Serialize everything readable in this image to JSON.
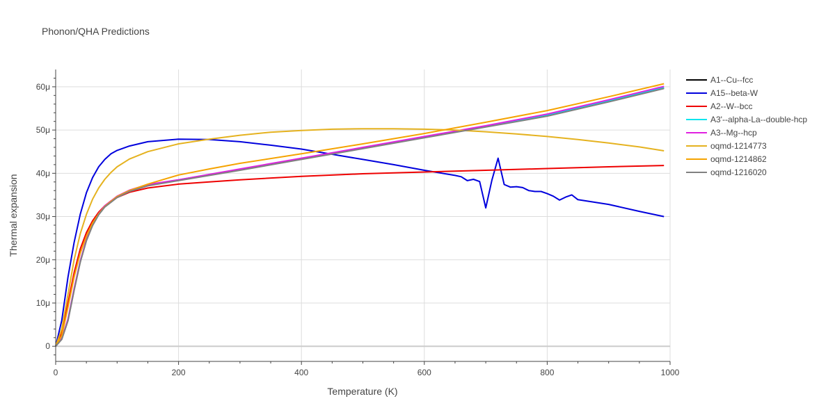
{
  "chart_data": {
    "type": "line",
    "title": "Phonon/QHA Predictions",
    "xlabel": "Temperature (K)",
    "ylabel": "Thermal expansion",
    "xlim": [
      0,
      1000
    ],
    "ylim": [
      -3.5e-06,
      6.4e-05
    ],
    "x_ticks": [
      {
        "value": 0,
        "label": "0"
      },
      {
        "value": 200,
        "label": "200"
      },
      {
        "value": 400,
        "label": "400"
      },
      {
        "value": 600,
        "label": "600"
      },
      {
        "value": 800,
        "label": "800"
      },
      {
        "value": 1000,
        "label": "1000"
      }
    ],
    "y_ticks": [
      {
        "value": 0,
        "label": "0"
      },
      {
        "value": 1e-05,
        "label": "10μ"
      },
      {
        "value": 2e-05,
        "label": "20μ"
      },
      {
        "value": 3e-05,
        "label": "30μ"
      },
      {
        "value": 4e-05,
        "label": "40μ"
      },
      {
        "value": 5e-05,
        "label": "50μ"
      },
      {
        "value": 6e-05,
        "label": "60μ"
      }
    ],
    "grid": true,
    "legend_position": "right",
    "series": [
      {
        "name": "A1--Cu--fcc",
        "color": "#000000",
        "x": [
          0,
          10,
          20,
          30,
          40,
          50,
          60,
          70,
          80,
          100,
          120,
          150,
          200,
          300,
          400,
          500,
          600,
          700,
          800,
          900,
          990
        ],
        "y": [
          0,
          1.7e-06,
          6e-06,
          1.3e-05,
          1.95e-05,
          2.45e-05,
          2.8e-05,
          3.05e-05,
          3.23e-05,
          3.45e-05,
          3.59e-05,
          3.72e-05,
          3.84e-05,
          4.08e-05,
          4.33e-05,
          4.58e-05,
          4.83e-05,
          5.08e-05,
          5.33e-05,
          5.66e-05,
          5.97e-05
        ]
      },
      {
        "name": "A15--beta-W",
        "color": "#0000dd",
        "x": [
          0,
          10,
          20,
          30,
          40,
          50,
          60,
          70,
          80,
          90,
          100,
          120,
          150,
          200,
          250,
          300,
          350,
          400,
          450,
          500,
          550,
          600,
          650,
          660,
          670,
          680,
          690,
          700,
          710,
          720,
          730,
          740,
          750,
          760,
          770,
          780,
          790,
          800,
          810,
          820,
          830,
          840,
          850,
          900,
          950,
          990
        ],
        "y": [
          0,
          6e-06,
          1.6e-05,
          2.4e-05,
          3.05e-05,
          3.55e-05,
          3.9e-05,
          4.15e-05,
          4.32e-05,
          4.45e-05,
          4.53e-05,
          4.63e-05,
          4.73e-05,
          4.79e-05,
          4.78e-05,
          4.73e-05,
          4.65e-05,
          4.56e-05,
          4.44e-05,
          4.32e-05,
          4.2e-05,
          4.07e-05,
          3.95e-05,
          3.92e-05,
          3.83e-05,
          3.86e-05,
          3.81e-05,
          3.2e-05,
          3.84e-05,
          4.35e-05,
          3.74e-05,
          3.68e-05,
          3.69e-05,
          3.67e-05,
          3.6e-05,
          3.58e-05,
          3.58e-05,
          3.53e-05,
          3.47e-05,
          3.38e-05,
          3.45e-05,
          3.5e-05,
          3.39e-05,
          3.28e-05,
          3.12e-05,
          3e-05
        ]
      },
      {
        "name": "A2--W--bcc",
        "color": "#ee0000",
        "x": [
          0,
          10,
          20,
          30,
          40,
          50,
          60,
          70,
          80,
          90,
          100,
          120,
          150,
          200,
          250,
          300,
          400,
          500,
          600,
          700,
          800,
          900,
          990
        ],
        "y": [
          0,
          3e-06,
          1e-05,
          1.7e-05,
          2.25e-05,
          2.63e-05,
          2.9e-05,
          3.1e-05,
          3.25e-05,
          3.36e-05,
          3.44e-05,
          3.56e-05,
          3.66e-05,
          3.75e-05,
          3.8e-05,
          3.85e-05,
          3.93e-05,
          3.99e-05,
          4.03e-05,
          4.07e-05,
          4.11e-05,
          4.15e-05,
          4.18e-05
        ]
      },
      {
        "name": "A3'--alpha-La--double-hcp",
        "color": "#00e5ee",
        "x": [
          0,
          10,
          20,
          30,
          40,
          50,
          60,
          70,
          80,
          100,
          120,
          150,
          200,
          300,
          400,
          500,
          600,
          700,
          800,
          900,
          990
        ],
        "y": [
          0,
          1.7e-06,
          6.2e-06,
          1.32e-05,
          1.96e-05,
          2.46e-05,
          2.81e-05,
          3.06e-05,
          3.24e-05,
          3.46e-05,
          3.6e-05,
          3.73e-05,
          3.85e-05,
          4.09e-05,
          4.34e-05,
          4.59e-05,
          4.84e-05,
          5.09e-05,
          5.35e-05,
          5.68e-05,
          5.99e-05
        ]
      },
      {
        "name": "A3--Mg--hcp",
        "color": "#e020e0",
        "x": [
          0,
          10,
          20,
          30,
          40,
          50,
          60,
          70,
          80,
          100,
          120,
          150,
          200,
          300,
          400,
          500,
          600,
          700,
          800,
          900,
          990
        ],
        "y": [
          0,
          1.8e-06,
          6.3e-06,
          1.33e-05,
          1.97e-05,
          2.47e-05,
          2.82e-05,
          3.07e-05,
          3.25e-05,
          3.47e-05,
          3.61e-05,
          3.74e-05,
          3.85e-05,
          4.1e-05,
          4.35e-05,
          4.6e-05,
          4.85e-05,
          5.1e-05,
          5.37e-05,
          5.7e-05,
          6.01e-05
        ]
      },
      {
        "name": "oqmd-1214773",
        "color": "#e5b21f",
        "x": [
          0,
          10,
          20,
          30,
          40,
          50,
          60,
          70,
          80,
          90,
          100,
          120,
          150,
          200,
          250,
          300,
          350,
          400,
          450,
          500,
          550,
          600,
          650,
          700,
          750,
          800,
          850,
          900,
          950,
          990
        ],
        "y": [
          0,
          4e-06,
          1.2e-05,
          2e-05,
          2.6e-05,
          3.05e-05,
          3.4e-05,
          3.66e-05,
          3.86e-05,
          4.02e-05,
          4.15e-05,
          4.33e-05,
          4.5e-05,
          4.68e-05,
          4.79e-05,
          4.88e-05,
          4.95e-05,
          4.99e-05,
          5.02e-05,
          5.03e-05,
          5.03e-05,
          5.02e-05,
          5e-05,
          4.96e-05,
          4.91e-05,
          4.85e-05,
          4.78e-05,
          4.7e-05,
          4.61e-05,
          4.52e-05
        ]
      },
      {
        "name": "oqmd-1214862",
        "color": "#f5a300",
        "x": [
          0,
          10,
          20,
          30,
          40,
          50,
          60,
          70,
          80,
          90,
          100,
          120,
          150,
          200,
          250,
          300,
          400,
          500,
          600,
          700,
          800,
          900,
          990
        ],
        "y": [
          0,
          2.5e-06,
          9e-06,
          1.6e-05,
          2.15e-05,
          2.55e-05,
          2.85e-05,
          3.06e-05,
          3.23e-05,
          3.35e-05,
          3.46e-05,
          3.6e-05,
          3.75e-05,
          3.96e-05,
          4.1e-05,
          4.23e-05,
          4.45e-05,
          4.68e-05,
          4.92e-05,
          5.18e-05,
          5.45e-05,
          5.77e-05,
          6.07e-05
        ]
      },
      {
        "name": "oqmd-1216020",
        "color": "#808080",
        "x": [
          0,
          10,
          20,
          30,
          40,
          50,
          60,
          70,
          80,
          100,
          120,
          150,
          200,
          300,
          400,
          500,
          600,
          700,
          800,
          900,
          990
        ],
        "y": [
          0,
          1.6e-06,
          5.9e-06,
          1.29e-05,
          1.94e-05,
          2.44e-05,
          2.79e-05,
          3.04e-05,
          3.22e-05,
          3.44e-05,
          3.58e-05,
          3.71e-05,
          3.83e-05,
          4.07e-05,
          4.32e-05,
          4.57e-05,
          4.82e-05,
          5.07e-05,
          5.32e-05,
          5.65e-05,
          5.96e-05
        ]
      }
    ]
  }
}
